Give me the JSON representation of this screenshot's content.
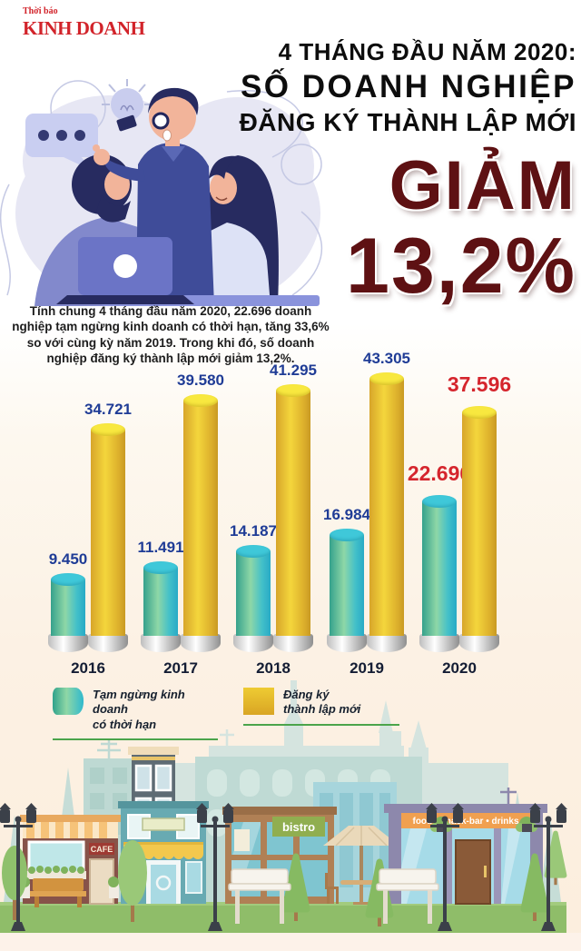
{
  "logo": {
    "top": "Thời báo",
    "main": "KINH DOANH",
    "color": "#d2232a"
  },
  "title": {
    "line1": "4 THÁNG ĐẦU NĂM 2020:",
    "line2": "SỐ DOANH NGHIỆP",
    "line3": "ĐĂNG KÝ THÀNH LẬP MỚI",
    "drop_word": "GIẢM",
    "drop_value": "13,2%",
    "drop_color": "#5e1113"
  },
  "intro": {
    "text": "Tính chung 4 tháng đầu năm 2020, 22.696 doanh nghiệp tạm ngừng kinh doanh có thời hạn, tăng 33,6% so với cùng kỳ năm 2019. Trong khi đó, số doanh nghiệp đăng ký thành lập mới giảm 13,2%."
  },
  "chart_data": {
    "type": "bar",
    "categories": [
      "2016",
      "2017",
      "2018",
      "2019",
      "2020"
    ],
    "series": [
      {
        "name": "Tạm ngừng kinh doanh có thời hạn",
        "swatch": "teal",
        "color": "#3fc1cf",
        "values": [
          9450,
          11491,
          14187,
          16984,
          22696
        ],
        "value_labels": [
          "9.450",
          "11.491",
          "14.187",
          "16.984",
          "22.696"
        ]
      },
      {
        "name": "Đăng ký thành lập mới",
        "swatch": "yellow",
        "color": "#eec93a",
        "values": [
          34721,
          39580,
          41295,
          43305,
          37596
        ],
        "value_labels": [
          "34.721",
          "39.580",
          "41.295",
          "43.305",
          "37.596"
        ]
      }
    ],
    "ylim": [
      0,
      45000
    ],
    "grid": false,
    "legend_position": "below-chart",
    "highlight_category": "2020",
    "label_colors": {
      "default": "#1f3c96",
      "highlight": "#d5252d"
    }
  },
  "legend": {
    "items": [
      {
        "lines": [
          "Tạm ngừng kinh doanh",
          "có thời hạn"
        ],
        "swatch": "teal"
      },
      {
        "lines": [
          "Đăng ký",
          "thành lập mới"
        ],
        "swatch": "yellow"
      }
    ],
    "underline_color": "#4ba44b"
  },
  "city": {
    "cafe_sign": "CAFE",
    "bistro_sign": "bistro",
    "snackbar_sign": "food • snack-bar • drinks"
  }
}
